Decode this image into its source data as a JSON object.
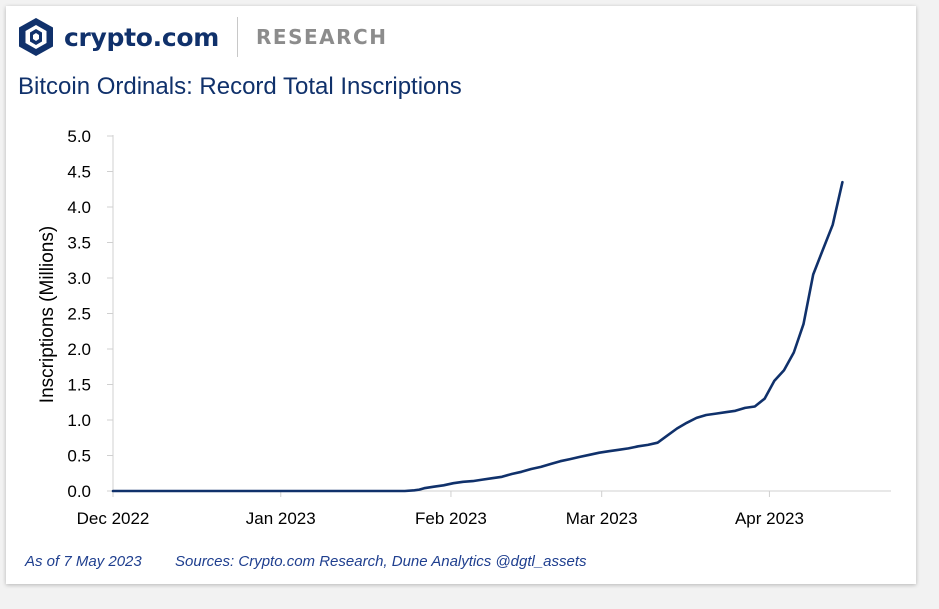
{
  "header": {
    "brand": "crypto.com",
    "section": "RESEARCH"
  },
  "chart_data": {
    "type": "line",
    "title": "Bitcoin Ordinals: Record Total Inscriptions",
    "ylabel": "Inscriptions (Millions)",
    "xlabel": "",
    "ylim": [
      0,
      5
    ],
    "yticks": [
      "0.0",
      "0.5",
      "1.0",
      "1.5",
      "2.0",
      "2.5",
      "3.0",
      "3.5",
      "4.0",
      "4.5",
      "5.0"
    ],
    "x_domain_days": [
      0,
      160
    ],
    "xticks": [
      {
        "label": "Dec 2022",
        "day": 0
      },
      {
        "label": "Jan 2023",
        "day": 34.5
      },
      {
        "label": "Feb 2023",
        "day": 69.5
      },
      {
        "label": "Mar 2023",
        "day": 100.5
      },
      {
        "label": "Apr 2023",
        "day": 135
      }
    ],
    "grid": false,
    "series": [
      {
        "name": "Total Inscriptions",
        "color": "#10316b",
        "points": [
          [
            0,
            0.0
          ],
          [
            60,
            0.0
          ],
          [
            62,
            0.01
          ],
          [
            63,
            0.02
          ],
          [
            64,
            0.04
          ],
          [
            66,
            0.06
          ],
          [
            68,
            0.08
          ],
          [
            70,
            0.11
          ],
          [
            72,
            0.13
          ],
          [
            74,
            0.14
          ],
          [
            76,
            0.16
          ],
          [
            78,
            0.18
          ],
          [
            80,
            0.2
          ],
          [
            82,
            0.24
          ],
          [
            84,
            0.27
          ],
          [
            86,
            0.31
          ],
          [
            88,
            0.34
          ],
          [
            90,
            0.38
          ],
          [
            92,
            0.42
          ],
          [
            94,
            0.45
          ],
          [
            96,
            0.48
          ],
          [
            98,
            0.51
          ],
          [
            100,
            0.54
          ],
          [
            102,
            0.56
          ],
          [
            104,
            0.58
          ],
          [
            106,
            0.6
          ],
          [
            108,
            0.63
          ],
          [
            110,
            0.65
          ],
          [
            112,
            0.68
          ],
          [
            114,
            0.78
          ],
          [
            116,
            0.88
          ],
          [
            118,
            0.96
          ],
          [
            120,
            1.03
          ],
          [
            122,
            1.07
          ],
          [
            124,
            1.09
          ],
          [
            126,
            1.11
          ],
          [
            128,
            1.13
          ],
          [
            130,
            1.17
          ],
          [
            132,
            1.19
          ],
          [
            134,
            1.3
          ],
          [
            136,
            1.55
          ],
          [
            138,
            1.7
          ],
          [
            140,
            1.95
          ],
          [
            142,
            2.35
          ],
          [
            144,
            3.05
          ],
          [
            146,
            3.4
          ],
          [
            148,
            3.75
          ],
          [
            150,
            4.35
          ]
        ]
      }
    ]
  },
  "footer": {
    "as_of": "As of 7 May 2023",
    "sources": "Sources: Crypto.com Research, Dune Analytics @dgtl_assets"
  }
}
